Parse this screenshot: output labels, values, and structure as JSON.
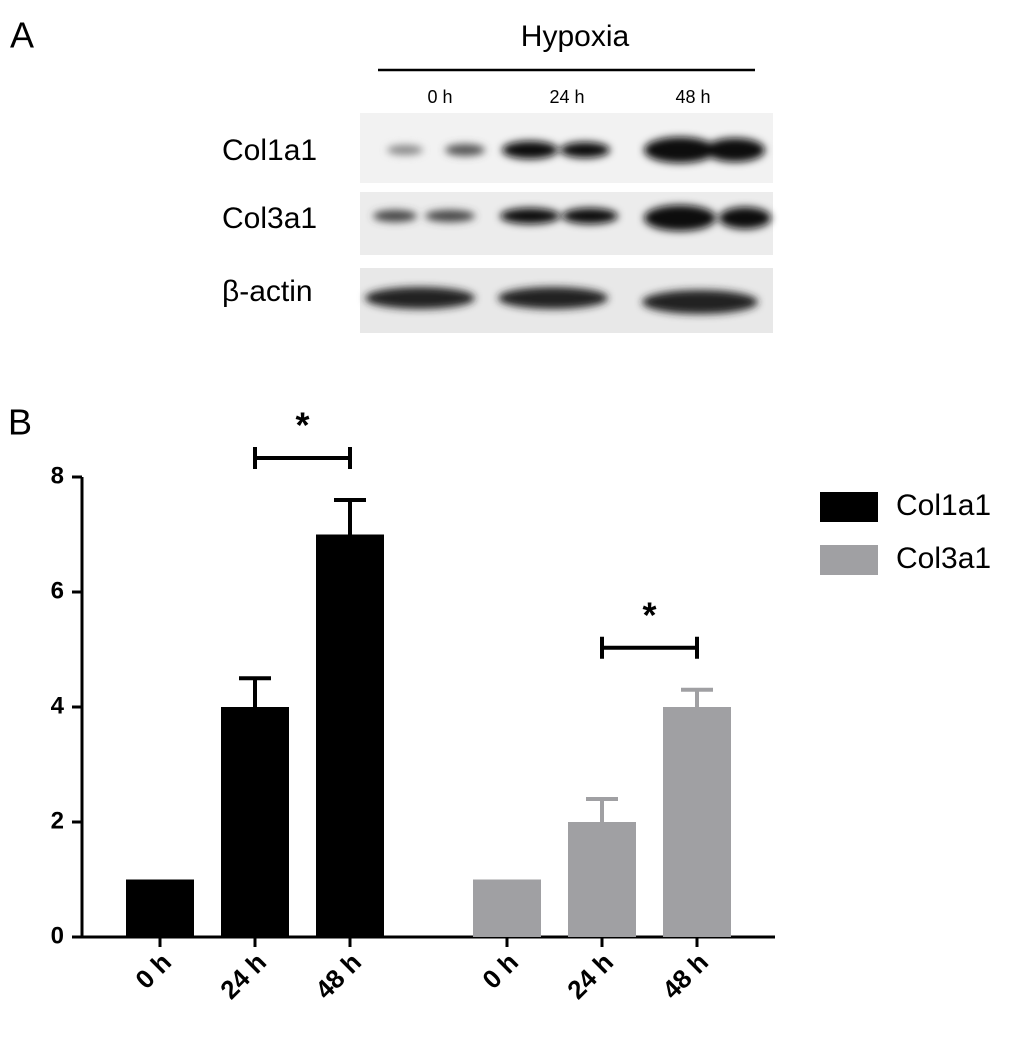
{
  "panel_a": {
    "label": "A",
    "condition": "Hypoxia",
    "lanes": [
      "0 h",
      "24 h",
      "48 h"
    ],
    "rows": [
      "Col1a1",
      "Col3a1",
      "β-actin"
    ]
  },
  "chart_data": {
    "type": "bar",
    "panel_label": "B",
    "categories": [
      "0 h",
      "24 h",
      "48 h"
    ],
    "series": [
      {
        "name": "Col1a1",
        "color": "#000000",
        "values": [
          1,
          4,
          7
        ],
        "errors": [
          0,
          0.5,
          0.6
        ],
        "significance": "*"
      },
      {
        "name": "Col3a1",
        "color": "#a0a0a3",
        "values": [
          1,
          2,
          4
        ],
        "errors": [
          0,
          0.4,
          0.3
        ],
        "significance": "*"
      }
    ],
    "ylim": [
      0,
      8
    ],
    "yticks": [
      0,
      2,
      4,
      6,
      8
    ],
    "legend": "right"
  }
}
